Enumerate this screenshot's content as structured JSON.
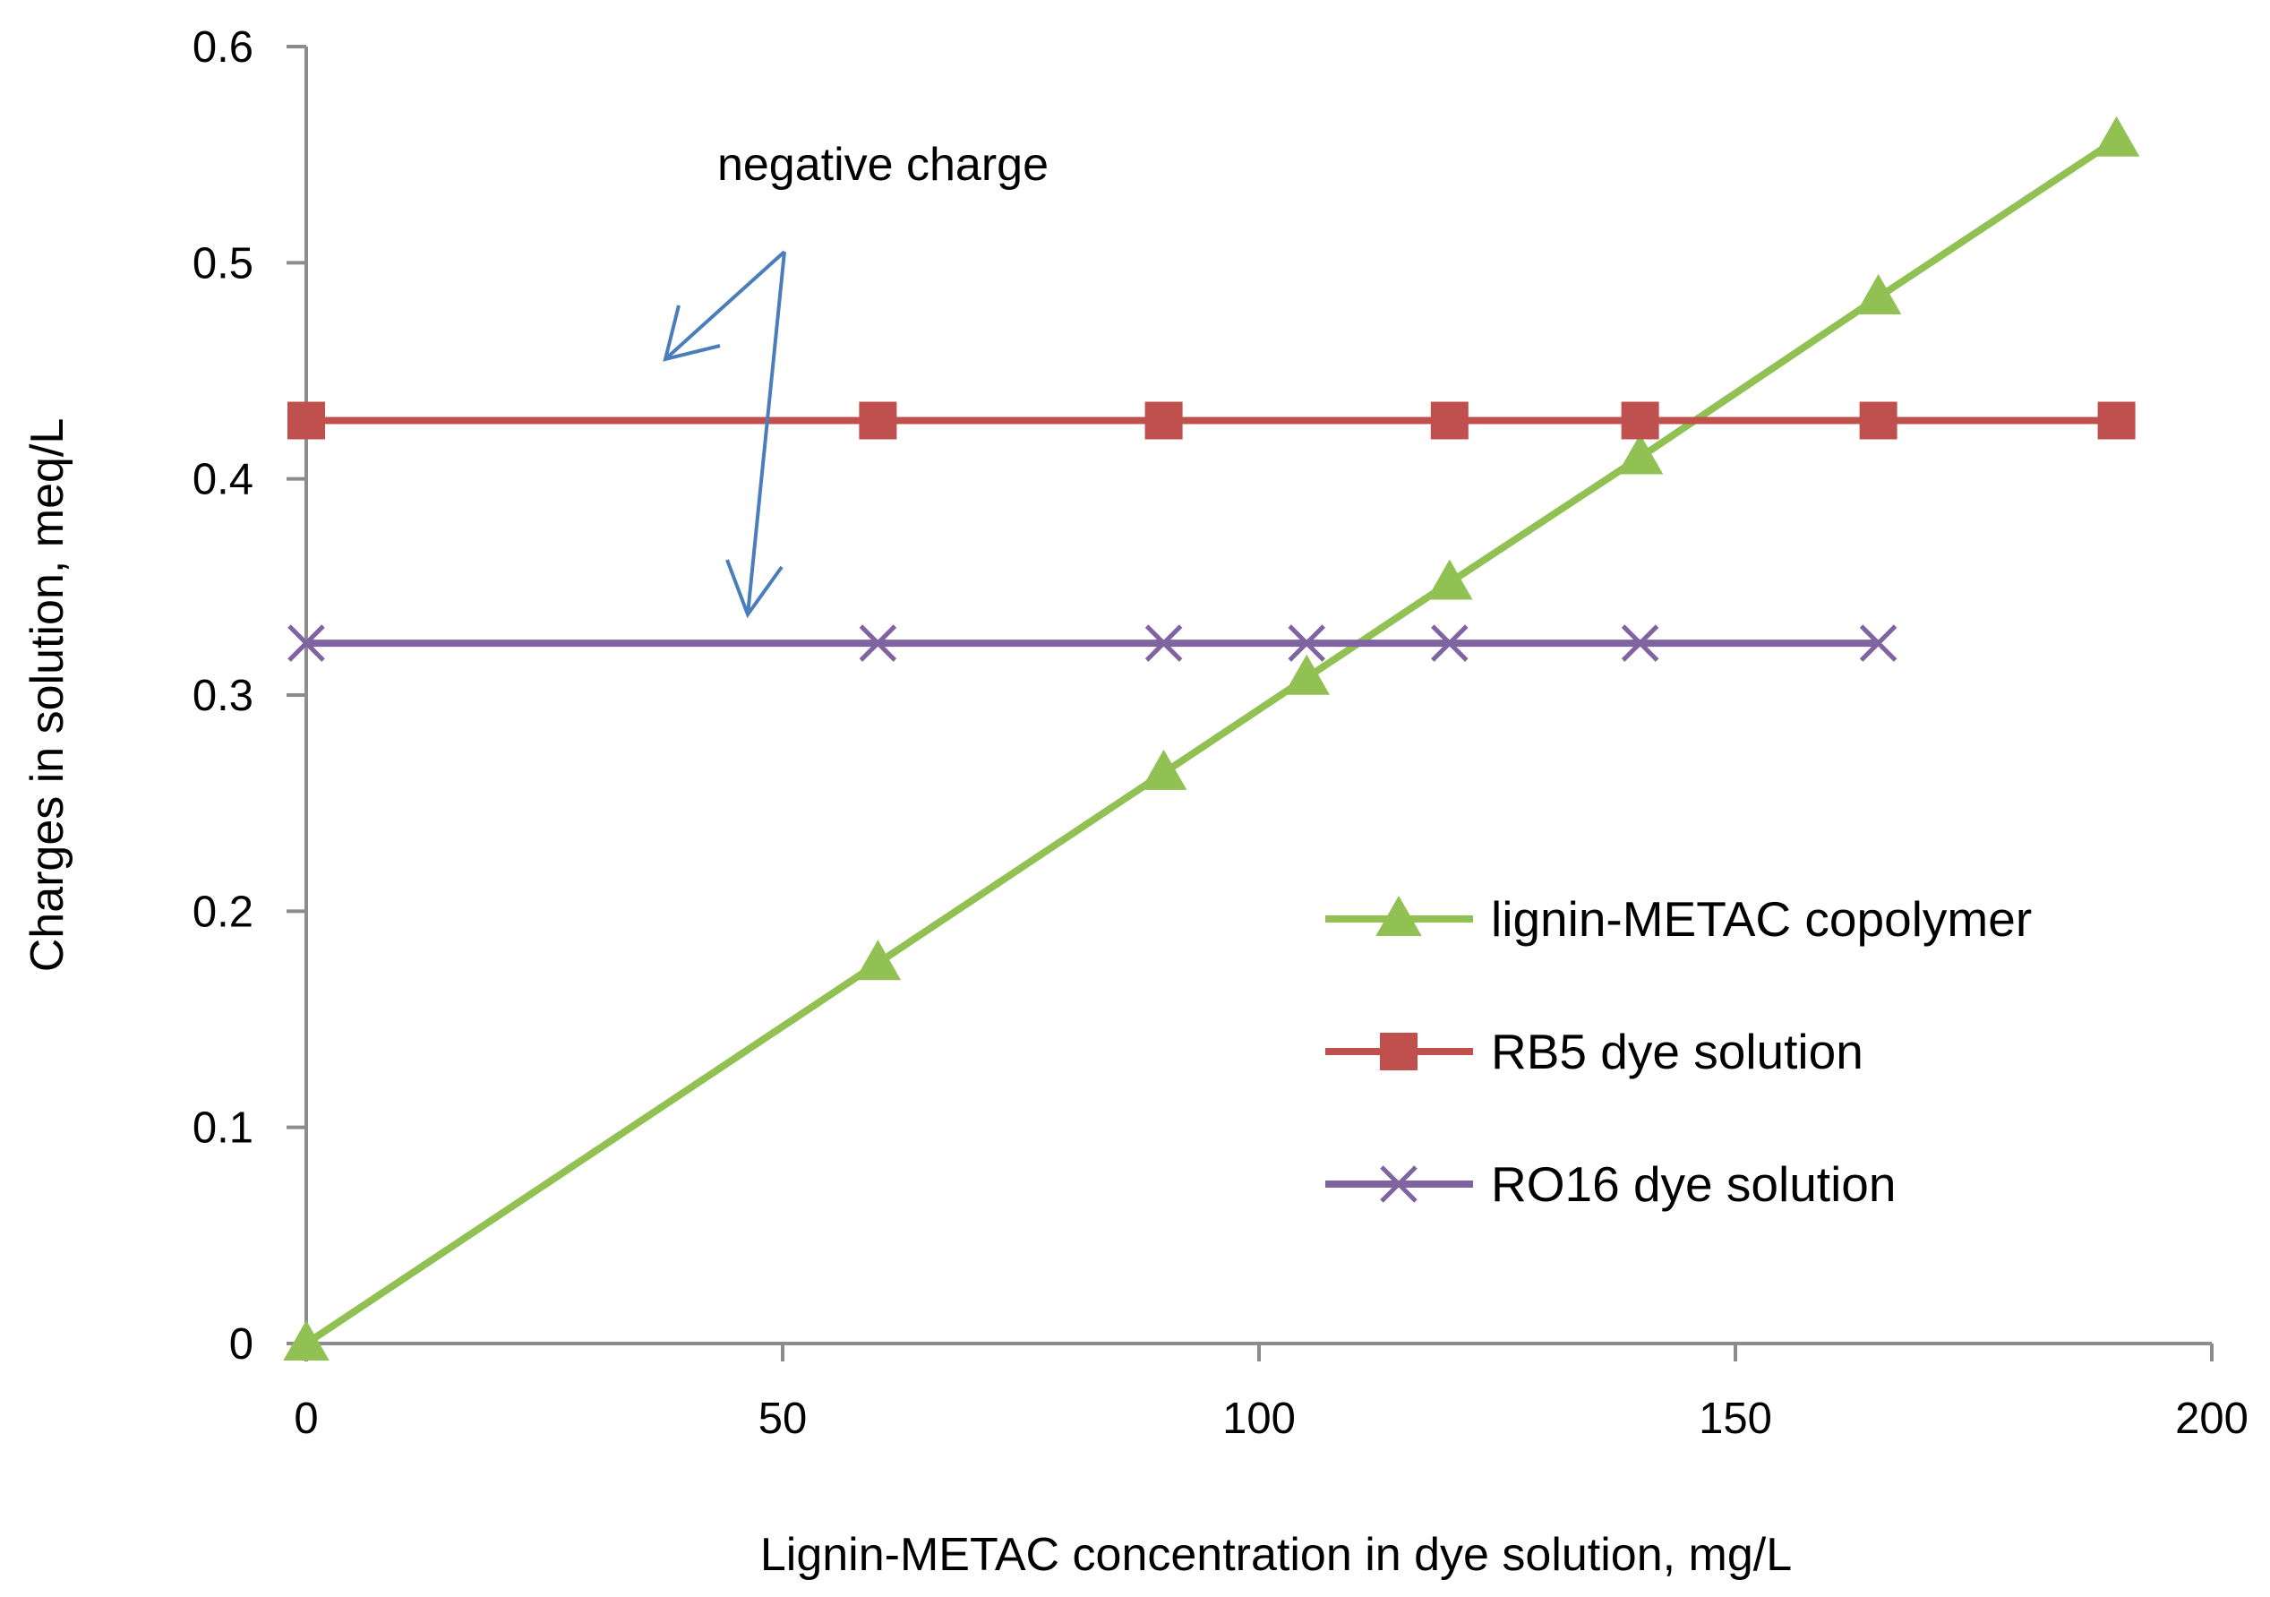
{
  "chart_data": {
    "type": "line",
    "title": "",
    "xlabel": "Lignin-METAC concentration in dye solution, mg/L",
    "ylabel": "Charges in solution, meq/L",
    "xlim": [
      0,
      200
    ],
    "ylim": [
      0,
      0.6
    ],
    "xticks": [
      "0",
      "50",
      "100",
      "150",
      "200"
    ],
    "yticks": [
      "0",
      "0.1",
      "0.2",
      "0.3",
      "0.4",
      "0.5",
      "0.6"
    ],
    "grid": false,
    "legend_position": "right-center",
    "annotation": "negative charge",
    "series": [
      {
        "name": "lignin-METAC copolymer",
        "color": "#92c153",
        "marker": "triangle",
        "x": [
          0,
          60,
          90,
          105,
          120,
          140,
          165,
          190
        ],
        "y": [
          0,
          0.176,
          0.264,
          0.308,
          0.352,
          0.41,
          0.484,
          0.557
        ]
      },
      {
        "name": "RB5 dye solution",
        "color": "#c0504d",
        "marker": "square",
        "x": [
          0,
          60,
          90,
          120,
          140,
          165,
          190
        ],
        "y": [
          0.427,
          0.427,
          0.427,
          0.427,
          0.427,
          0.427,
          0.427
        ]
      },
      {
        "name": "RO16 dye solution",
        "color": "#8064a2",
        "marker": "x",
        "x": [
          0,
          60,
          90,
          105,
          120,
          140,
          165
        ],
        "y": [
          0.324,
          0.324,
          0.324,
          0.324,
          0.324,
          0.324,
          0.324
        ]
      }
    ],
    "arrow_color": "#4a7ebb"
  }
}
